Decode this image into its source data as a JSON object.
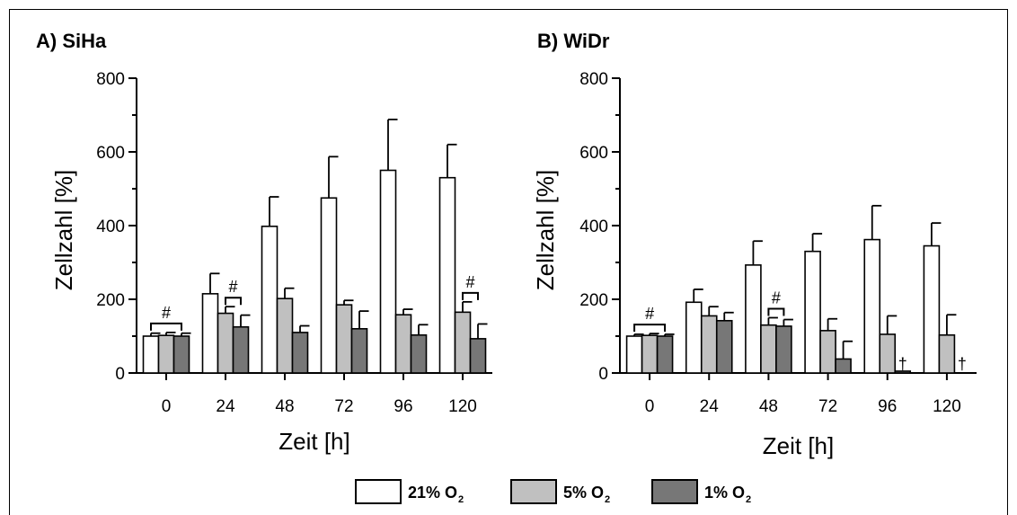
{
  "colors": {
    "series_21": "#ffffff",
    "series_5": "#c0c0c0",
    "series_1": "#777777",
    "stroke": "#000000"
  },
  "legend": [
    {
      "label": "21% O",
      "sub": "2"
    },
    {
      "label": "5% O",
      "sub": "2"
    },
    {
      "label": "1% O",
      "sub": "2"
    }
  ],
  "chart_data": [
    {
      "type": "bar",
      "title": "A) SiHa",
      "xlabel": "Zeit [h]",
      "ylabel": "Zellzahl [%]",
      "ylim": [
        0,
        800
      ],
      "yticks": [
        0,
        200,
        400,
        600,
        800
      ],
      "categories": [
        "0",
        "24",
        "48",
        "72",
        "96",
        "120"
      ],
      "series": [
        {
          "name": "21% O2",
          "values": [
            100,
            215,
            398,
            475,
            550,
            530
          ],
          "errors": [
            8,
            55,
            80,
            112,
            138,
            90
          ]
        },
        {
          "name": "5% O2",
          "values": [
            102,
            162,
            202,
            185,
            158,
            165
          ],
          "errors": [
            8,
            18,
            28,
            12,
            15,
            28
          ]
        },
        {
          "name": "1% O2",
          "values": [
            100,
            125,
            110,
            120,
            103,
            93
          ],
          "errors": [
            8,
            32,
            18,
            48,
            28,
            40
          ]
        }
      ],
      "annotations": [
        {
          "text": "#",
          "from": [
            0,
            0
          ],
          "to": [
            0,
            2
          ]
        },
        {
          "text": "#",
          "from": [
            1,
            1
          ],
          "to": [
            1,
            2
          ]
        },
        {
          "text": "#",
          "from": [
            5,
            1
          ],
          "to": [
            5,
            2
          ]
        }
      ],
      "daggers": []
    },
    {
      "type": "bar",
      "title": "B) WiDr",
      "xlabel": "Zeit [h]",
      "ylabel": "Zellzahl [%]",
      "ylim": [
        0,
        800
      ],
      "yticks": [
        0,
        200,
        400,
        600,
        800
      ],
      "categories": [
        "0",
        "24",
        "48",
        "72",
        "96",
        "120"
      ],
      "series": [
        {
          "name": "21% O2",
          "values": [
            100,
            192,
            293,
            330,
            362,
            345
          ],
          "errors": [
            5,
            35,
            65,
            48,
            92,
            62
          ]
        },
        {
          "name": "5% O2",
          "values": [
            102,
            155,
            130,
            115,
            105,
            103
          ],
          "errors": [
            5,
            25,
            20,
            32,
            50,
            55
          ]
        },
        {
          "name": "1% O2",
          "values": [
            100,
            142,
            127,
            38,
            5,
            null
          ],
          "errors": [
            5,
            22,
            18,
            48,
            0,
            0
          ]
        }
      ],
      "annotations": [
        {
          "text": "#",
          "from": [
            0,
            0
          ],
          "to": [
            0,
            2
          ]
        },
        {
          "text": "#",
          "from": [
            2,
            1
          ],
          "to": [
            2,
            2
          ]
        }
      ],
      "daggers": [
        {
          "category": 4,
          "text": "†"
        },
        {
          "category": 5,
          "text": "†"
        }
      ]
    }
  ]
}
